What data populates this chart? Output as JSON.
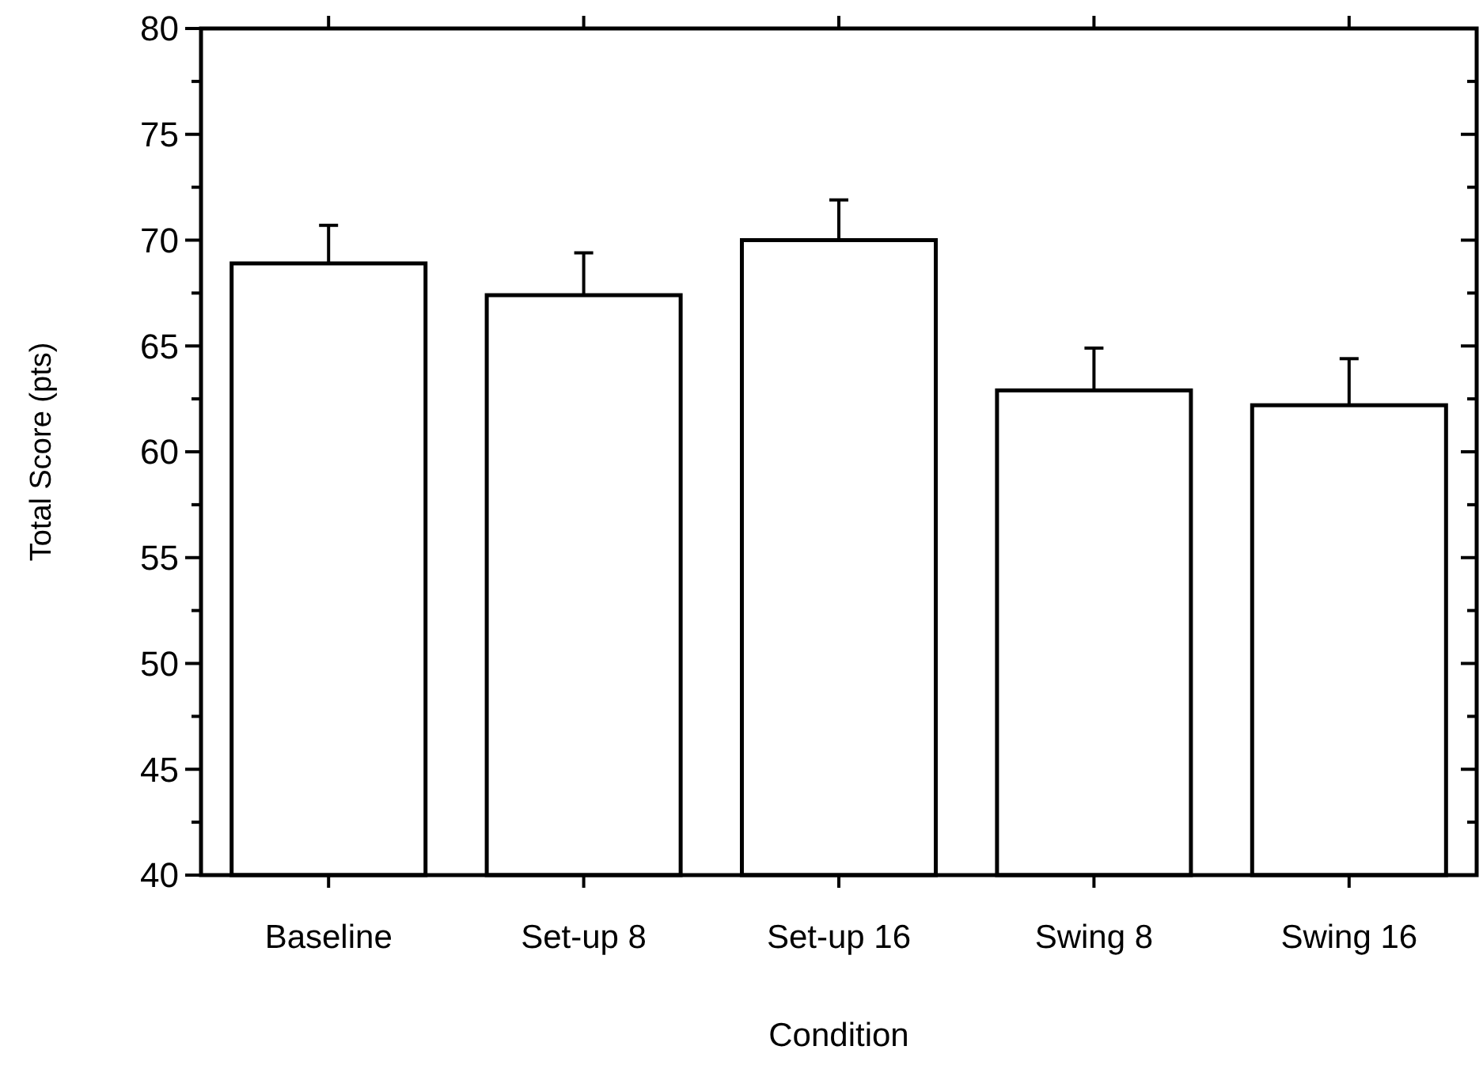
{
  "chart_data": {
    "type": "bar",
    "xlabel": "Condition",
    "ylabel": "Total Score (pts)",
    "categories": [
      "Baseline",
      "Set-up 8",
      "Set-up 16",
      "Swing 8",
      "Swing 16"
    ],
    "values": [
      68.9,
      67.4,
      70.0,
      62.9,
      62.2
    ],
    "errors": [
      [
        68.9,
        70.7
      ],
      [
        67.4,
        69.4
      ],
      [
        70.0,
        71.9
      ],
      [
        62.9,
        64.9
      ],
      [
        62.2,
        64.4
      ]
    ],
    "color": "#ffffff",
    "ylim": [
      40,
      80
    ],
    "yticks": [
      40,
      {
        "value": 42.5,
        "label": null
      },
      45,
      {
        "value": 47.5,
        "label": null
      },
      50,
      {
        "value": 52.5,
        "label": null
      },
      55,
      {
        "value": 57.5,
        "label": null
      },
      60,
      {
        "value": 62.5,
        "label": null
      },
      65,
      {
        "value": 67.5,
        "label": null
      },
      70,
      {
        "value": 72.5,
        "label": null
      },
      75,
      {
        "value": 77.5,
        "label": null
      },
      80
    ],
    "grid": false
  }
}
